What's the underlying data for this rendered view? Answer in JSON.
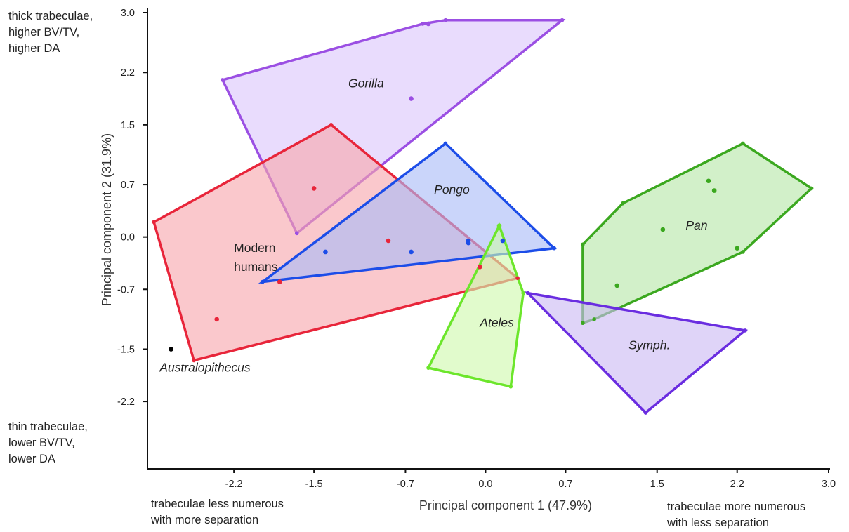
{
  "corner_notes": {
    "top_left": "thick trabeculae,\nhigher BV/TV,\nhigher DA",
    "bottom_left": "thin trabeculae,\nlower BV/TV,\nlower DA",
    "bottom_x_left": "trabeculae less numerous\nwith more separation",
    "bottom_x_right": "trabeculae more numerous\nwith less separation"
  },
  "chart_data": {
    "type": "scatter",
    "xlabel": "Principal component 1 (47.9%)",
    "ylabel": "Principal component 2 (31.9%)",
    "xlim": [
      -2.95,
      3.0
    ],
    "ylim": [
      -3.1,
      3.0
    ],
    "x_ticks": [
      -2.2,
      -1.5,
      -0.7,
      0.0,
      0.7,
      1.5,
      2.2,
      3.0
    ],
    "y_ticks": [
      3.0,
      2.2,
      1.5,
      0.7,
      0.0,
      -0.7,
      -1.5,
      -2.2
    ],
    "grid": false,
    "series": [
      {
        "name": "Gorilla",
        "italic": true,
        "color": "#9b4fe3",
        "fill": "#dcc6fb",
        "hull": [
          [
            -2.3,
            2.1
          ],
          [
            -0.55,
            2.85
          ],
          [
            -0.35,
            2.9
          ],
          [
            0.67,
            2.9
          ],
          [
            -1.65,
            0.05
          ]
        ],
        "points": [
          [
            -0.65,
            1.85
          ],
          [
            -0.5,
            2.85
          ]
        ],
        "label_pos": [
          -1.2,
          2.0
        ]
      },
      {
        "name": "Modern\nhumans",
        "italic": false,
        "color": "#e8253a",
        "fill": "#f7a7ad",
        "hull": [
          [
            -2.9,
            0.2
          ],
          [
            -1.35,
            1.5
          ],
          [
            0.28,
            -0.55
          ],
          [
            -2.55,
            -1.65
          ]
        ],
        "points": [
          [
            -1.5,
            0.65
          ],
          [
            -0.85,
            -0.05
          ],
          [
            -1.8,
            -0.6
          ],
          [
            -2.35,
            -1.1
          ],
          [
            -0.05,
            -0.4
          ]
        ],
        "label_pos": [
          -2.2,
          -0.2
        ]
      },
      {
        "name": "Pongo",
        "italic": true,
        "color": "#1c4de8",
        "fill": "#a9bcf7",
        "hull": [
          [
            -0.35,
            1.25
          ],
          [
            0.6,
            -0.15
          ],
          [
            -1.95,
            -0.6
          ]
        ],
        "points": [
          [
            -1.4,
            -0.2
          ],
          [
            -0.65,
            -0.2
          ],
          [
            -0.15,
            -0.05
          ],
          [
            -0.15,
            -0.08
          ],
          [
            0.15,
            -0.05
          ]
        ],
        "label_pos": [
          -0.45,
          0.58
        ]
      },
      {
        "name": "Pan",
        "italic": true,
        "color": "#3ba81f",
        "fill": "#b7e6a8",
        "hull": [
          [
            0.85,
            -0.1
          ],
          [
            1.2,
            0.45
          ],
          [
            2.25,
            1.25
          ],
          [
            2.85,
            0.65
          ],
          [
            2.25,
            -0.2
          ],
          [
            0.95,
            -1.1
          ],
          [
            0.85,
            -1.15
          ]
        ],
        "points": [
          [
            1.55,
            0.1
          ],
          [
            1.95,
            0.75
          ],
          [
            2.0,
            0.62
          ],
          [
            2.2,
            -0.15
          ],
          [
            1.15,
            -0.65
          ]
        ],
        "label_pos": [
          1.75,
          0.1
        ]
      },
      {
        "name": "Ateles",
        "italic": true,
        "color": "#6ce62b",
        "fill": "#cef8ad",
        "hull": [
          [
            0.12,
            0.15
          ],
          [
            0.33,
            -0.75
          ],
          [
            0.22,
            -2.0
          ],
          [
            -0.5,
            -1.75
          ]
        ],
        "points": [
          [
            0.12,
            0.15
          ]
        ],
        "label_pos": [
          -0.05,
          -1.2
        ]
      },
      {
        "name": "Symph.",
        "italic": true,
        "color": "#6a2de0",
        "fill": "#cbb9f4",
        "hull": [
          [
            0.37,
            -0.75
          ],
          [
            2.27,
            -1.25
          ],
          [
            1.4,
            -2.35
          ]
        ],
        "points": [],
        "label_pos": [
          1.25,
          -1.5
        ]
      },
      {
        "name": "Australopithecus",
        "italic": true,
        "color": "#000000",
        "fill": "none",
        "hull": [],
        "points": [
          [
            -2.75,
            -1.5
          ]
        ],
        "label_pos": [
          -2.85,
          -1.8
        ]
      }
    ]
  }
}
